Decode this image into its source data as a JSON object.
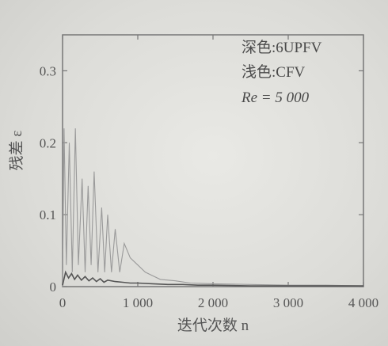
{
  "chart_data": {
    "type": "line",
    "xlabel": "迭代次数 n",
    "ylabel": "残差 ε",
    "xlim": [
      0,
      4000
    ],
    "ylim": [
      0,
      0.35
    ],
    "xticks": [
      0,
      1000,
      2000,
      3000,
      4000
    ],
    "xtick_labels": [
      "0",
      "1 000",
      "2 000",
      "3 000",
      "4 000"
    ],
    "yticks": [
      0,
      0.1,
      0.2,
      0.3
    ],
    "ytick_labels": [
      "0",
      "0.1",
      "0.2",
      "0.3"
    ],
    "annotations": [
      "深色:6UPFV",
      "浅色:CFV",
      "Re = 5 000"
    ],
    "grid": false,
    "series": [
      {
        "color": "#555555",
        "x": [
          0,
          40,
          80,
          120,
          160,
          200,
          250,
          300,
          350,
          400,
          450,
          500,
          550,
          600,
          700,
          800,
          900,
          1000,
          1200,
          1400,
          1600,
          1800,
          2000,
          2500,
          3000,
          3500,
          4000
        ],
        "y": [
          0.002,
          0.02,
          0.012,
          0.018,
          0.01,
          0.016,
          0.009,
          0.014,
          0.008,
          0.012,
          0.007,
          0.011,
          0.006,
          0.009,
          0.007,
          0.006,
          0.005,
          0.005,
          0.004,
          0.003,
          0.003,
          0.002,
          0.002,
          0.001,
          0.001,
          0.001,
          0.001
        ]
      },
      {
        "color": "#9a9a9a",
        "x": [
          0,
          20,
          50,
          90,
          130,
          170,
          210,
          260,
          300,
          340,
          380,
          420,
          470,
          520,
          560,
          600,
          650,
          700,
          760,
          820,
          900,
          1000,
          1100,
          1200,
          1300,
          1500,
          1700,
          2000,
          2500,
          3000,
          3500,
          4000
        ],
        "y": [
          0.0,
          0.22,
          0.03,
          0.2,
          0.02,
          0.22,
          0.03,
          0.15,
          0.02,
          0.14,
          0.03,
          0.16,
          0.02,
          0.11,
          0.02,
          0.1,
          0.02,
          0.08,
          0.02,
          0.06,
          0.04,
          0.03,
          0.02,
          0.015,
          0.01,
          0.008,
          0.005,
          0.004,
          0.003,
          0.002,
          0.002,
          0.001
        ]
      }
    ]
  }
}
